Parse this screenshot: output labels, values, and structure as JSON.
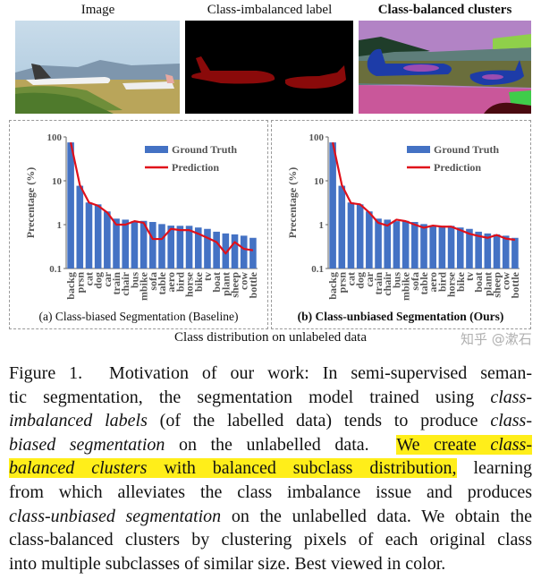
{
  "figure": {
    "panels": [
      {
        "title": "Image"
      },
      {
        "title": "Class-imbalanced label"
      },
      {
        "title": "Class-balanced clusters"
      }
    ],
    "distribution_caption": "Class distribution on unlabeled data"
  },
  "chart_data": [
    {
      "type": "bar",
      "title": "(a) Class-biased Segmentation (Baseline)",
      "ylabel": "Precentage (%)",
      "yscale": "log",
      "ylim": [
        0.1,
        100
      ],
      "yticks": [
        "0.1",
        "1",
        "10",
        "100"
      ],
      "legend": "top-right",
      "categories": [
        "backg",
        "prsn",
        "cat",
        "dog",
        "car",
        "train",
        "chair",
        "bus",
        "mbike",
        "sofa",
        "table",
        "aero",
        "bird",
        "horse",
        "bike",
        "tv",
        "boat",
        "plant",
        "sheep",
        "cow",
        "bottle"
      ],
      "series": [
        {
          "name": "Ground Truth",
          "type": "bar",
          "color": "#4472C4",
          "values": [
            75,
            7.7,
            3.2,
            2.9,
            2.0,
            1.37,
            1.3,
            1.2,
            1.22,
            1.15,
            1.03,
            0.95,
            0.94,
            0.94,
            0.86,
            0.8,
            0.69,
            0.63,
            0.6,
            0.56,
            0.5
          ]
        },
        {
          "name": "Prediction",
          "type": "line",
          "color": "#E0101A",
          "values": [
            75,
            8,
            3.2,
            2.7,
            1.9,
            1.0,
            1.0,
            1.2,
            1.1,
            0.47,
            0.47,
            0.8,
            0.75,
            0.75,
            0.62,
            0.5,
            0.4,
            0.22,
            0.4,
            0.28,
            0.26
          ]
        }
      ]
    },
    {
      "type": "bar",
      "title": "(b) Class-unbiased Segmentation (Ours)",
      "ylabel": "Precentage (%)",
      "yscale": "log",
      "ylim": [
        0.1,
        100
      ],
      "yticks": [
        "0.1",
        "1",
        "10",
        "100"
      ],
      "legend": "top-right",
      "categories": [
        "backg",
        "prsn",
        "cat",
        "dog",
        "car",
        "train",
        "chair",
        "bus",
        "mbike",
        "sofa",
        "table",
        "aero",
        "bird",
        "horse",
        "bike",
        "tv",
        "boat",
        "plant",
        "sheep",
        "cow",
        "bottle"
      ],
      "series": [
        {
          "name": "Ground Truth",
          "type": "bar",
          "color": "#4472C4",
          "values": [
            75,
            7.7,
            3.2,
            2.9,
            2.0,
            1.37,
            1.3,
            1.2,
            1.22,
            1.15,
            1.03,
            0.95,
            0.94,
            0.94,
            0.86,
            0.8,
            0.69,
            0.63,
            0.6,
            0.56,
            0.5
          ]
        },
        {
          "name": "Prediction",
          "type": "line",
          "color": "#E0101A",
          "values": [
            75,
            8,
            3.1,
            2.9,
            1.9,
            1.1,
            0.95,
            1.3,
            1.2,
            1.0,
            0.85,
            0.95,
            0.9,
            0.9,
            0.75,
            0.62,
            0.55,
            0.5,
            0.58,
            0.48,
            0.45
          ]
        }
      ]
    }
  ],
  "caption": {
    "lines": [
      [
        {
          "t": "Figure 1.  Motivation of our work: In semi-supervised seman-"
        }
      ],
      [
        {
          "t": "tic segmentation, the segmentation model trained using "
        },
        {
          "t": "class-",
          "i": true
        }
      ],
      [
        {
          "t": "imbalanced labels",
          "i": true
        },
        {
          "t": " (of the labelled data) tends to produce "
        },
        {
          "t": "class-",
          "i": true
        }
      ],
      [
        {
          "t": "biased segmentation",
          "i": true
        },
        {
          "t": " on the unlabelled data.  "
        },
        {
          "t": "We create ",
          "h": true
        },
        {
          "t": "class-",
          "i": true,
          "h": true
        }
      ],
      [
        {
          "t": "balanced clusters",
          "i": true,
          "h": true
        },
        {
          "t": " with balanced subclass distribution,",
          "h": true
        },
        {
          "t": " learning"
        }
      ],
      [
        {
          "t": "from which alleviates the class imbalance issue and produces"
        }
      ],
      [
        {
          "t": "class-unbiased segmentation",
          "i": true
        },
        {
          "t": " on the unlabelled data. We obtain the"
        }
      ],
      [
        {
          "t": "class-balanced clusters by clustering pixels of each original class"
        }
      ],
      [
        {
          "t": "into multiple subclasses of similar size. Best viewed in color."
        }
      ]
    ]
  },
  "watermark": "知乎 @漱石"
}
